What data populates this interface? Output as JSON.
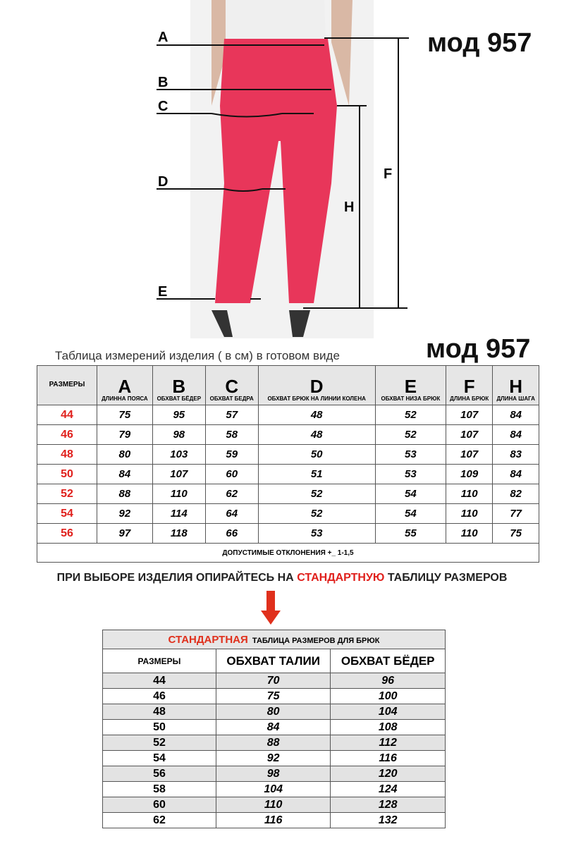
{
  "model_label": "мод 957",
  "diagram": {
    "labels": [
      "A",
      "B",
      "C",
      "D",
      "E",
      "F",
      "H"
    ]
  },
  "measure_table": {
    "caption": "Таблица  измерений изделия ( в см) в готовом виде",
    "size_header": "РАЗМЕРЫ",
    "columns": [
      {
        "letter": "A",
        "name": "ДЛИННА ПОЯСА"
      },
      {
        "letter": "B",
        "name": "ОБХВАТ БЁДЕР"
      },
      {
        "letter": "C",
        "name": "ОБХВАТ БЕДРА"
      },
      {
        "letter": "D",
        "name": "ОБХВАТ БРЮК НА ЛИНИИ КОЛЕНА"
      },
      {
        "letter": "E",
        "name": "ОБХВАТ НИЗА БРЮК"
      },
      {
        "letter": "F",
        "name": "ДЛИНА БРЮК"
      },
      {
        "letter": "H",
        "name": "ДЛИНА ШАГА"
      }
    ],
    "rows": [
      [
        "44",
        "75",
        "95",
        "57",
        "48",
        "52",
        "107",
        "84"
      ],
      [
        "46",
        "79",
        "98",
        "58",
        "48",
        "52",
        "107",
        "84"
      ],
      [
        "48",
        "80",
        "103",
        "59",
        "50",
        "53",
        "107",
        "83"
      ],
      [
        "50",
        "84",
        "107",
        "60",
        "51",
        "53",
        "109",
        "84"
      ],
      [
        "52",
        "88",
        "110",
        "62",
        "52",
        "54",
        "110",
        "82"
      ],
      [
        "54",
        "92",
        "114",
        "64",
        "52",
        "54",
        "110",
        "77"
      ],
      [
        "56",
        "97",
        "118",
        "66",
        "53",
        "55",
        "110",
        "75"
      ]
    ],
    "tolerance": "ДОПУСТИМЫЕ ОТКЛОНЕНИЯ +_ 1-1,5"
  },
  "notice": {
    "before": "ПРИ ВЫБОРЕ ИЗДЕЛИЯ ОПИРАЙТЕСЬ НА ",
    "highlight": "СТАНДАРТНУЮ",
    "after": " ТАБЛИЦУ РАЗМЕРОВ"
  },
  "standard_table": {
    "title_highlight": "СТАНДАРТНАЯ",
    "title_rest": "ТАБЛИЦА РАЗМЕРОВ ДЛЯ БРЮК",
    "headers": [
      "РАЗМЕРЫ",
      "ОБХВАТ ТАЛИИ",
      "ОБХВАТ БЁДЕР"
    ],
    "rows": [
      [
        "44",
        "70",
        "96"
      ],
      [
        "46",
        "75",
        "100"
      ],
      [
        "48",
        "80",
        "104"
      ],
      [
        "50",
        "84",
        "108"
      ],
      [
        "52",
        "88",
        "112"
      ],
      [
        "54",
        "92",
        "116"
      ],
      [
        "56",
        "98",
        "120"
      ],
      [
        "58",
        "104",
        "124"
      ],
      [
        "60",
        "110",
        "128"
      ],
      [
        "62",
        "116",
        "132"
      ]
    ]
  },
  "colors": {
    "accent_red": "#e0201c",
    "pants": "#e8365a"
  }
}
